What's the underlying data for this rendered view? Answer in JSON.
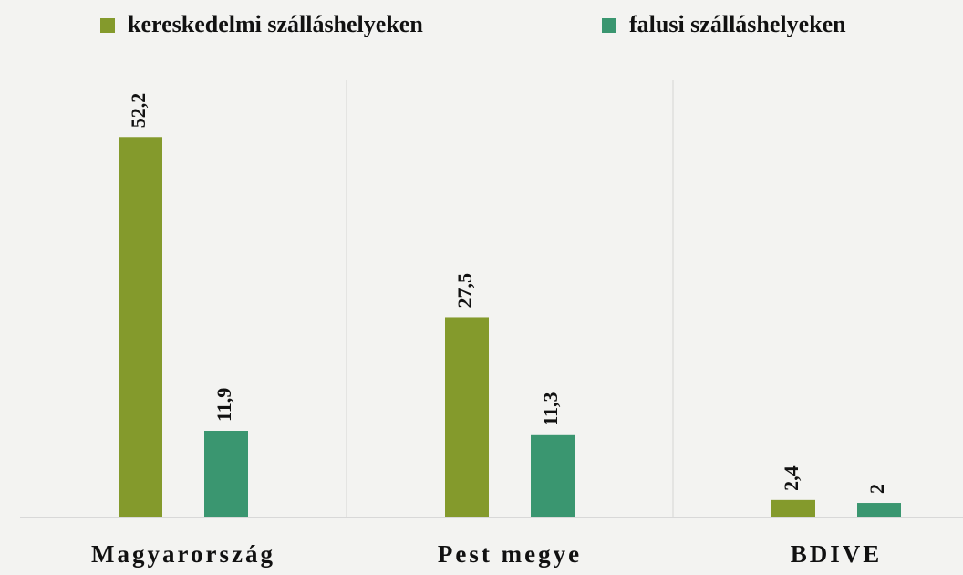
{
  "chart_data": {
    "type": "bar",
    "categories": [
      "Magyarország",
      "Pest megye",
      "BDIVE"
    ],
    "series": [
      {
        "name": "kereskedelmi szálláshelyeken",
        "color": "#849a2c",
        "values": [
          52.2,
          27.5,
          2.4
        ],
        "value_labels": [
          "52,2",
          "27,5",
          "2,4"
        ]
      },
      {
        "name": "falusi szálláshelyeken",
        "color": "#3a9670",
        "values": [
          11.9,
          11.3,
          2
        ],
        "value_labels": [
          "11,9",
          "11,3",
          "2"
        ]
      }
    ],
    "ylim": [
      0,
      60
    ]
  }
}
